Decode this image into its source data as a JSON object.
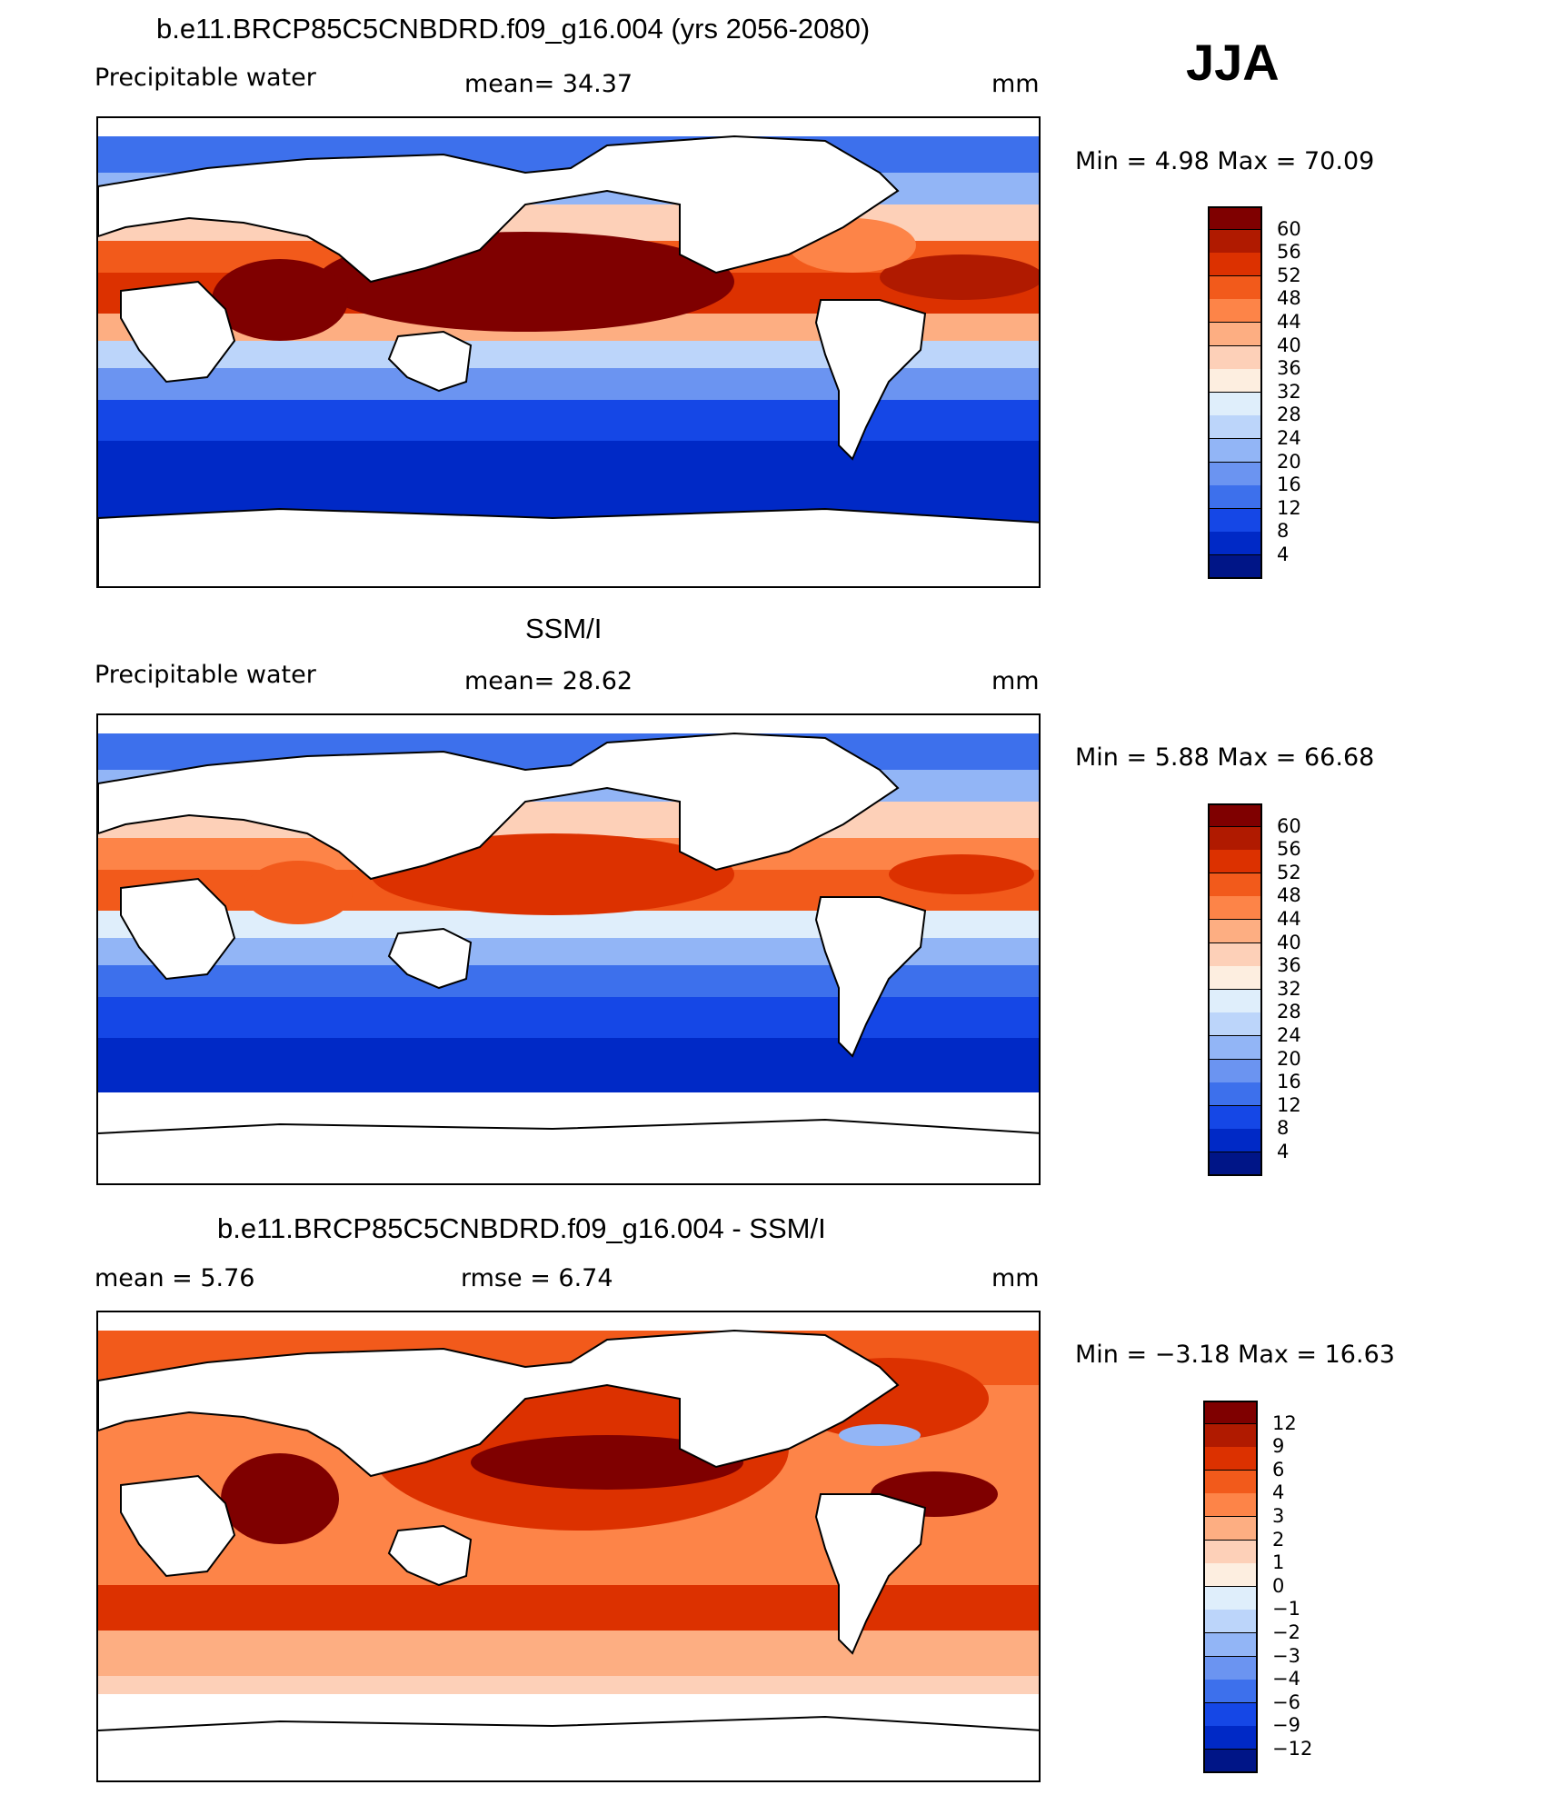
{
  "header": {
    "season": "JJA"
  },
  "panels": [
    {
      "id": "model",
      "title": "b.e11.BRCP85C5CNBDRD.f09_g16.004 (yrs 2056-2080)",
      "left_label": "Precipitable water",
      "mid_label": "mean=   34.37",
      "units": "mm",
      "minmax": "Min =    4.98 Max =   70.09",
      "colorbar": {
        "levels": [
          "60",
          "56",
          "52",
          "48",
          "44",
          "40",
          "36",
          "32",
          "28",
          "24",
          "20",
          "16",
          "12",
          "8",
          "4"
        ],
        "colors": [
          "#7f0000",
          "#b01a00",
          "#dc3100",
          "#f25a1b",
          "#fd8448",
          "#fdae82",
          "#fdd0b8",
          "#fdeee0",
          "#dfeefb",
          "#bcd5fa",
          "#92b5f6",
          "#6b94f1",
          "#3d70ec",
          "#1547e6",
          "#0029c6",
          "#001587"
        ]
      }
    },
    {
      "id": "obs",
      "title": "SSM/I",
      "left_label": "Precipitable water",
      "mid_label": "mean=   28.62",
      "units": "mm",
      "minmax": "Min =    5.88 Max =   66.68",
      "colorbar": {
        "levels": [
          "60",
          "56",
          "52",
          "48",
          "44",
          "40",
          "36",
          "32",
          "28",
          "24",
          "20",
          "16",
          "12",
          "8",
          "4"
        ],
        "colors": [
          "#7f0000",
          "#b01a00",
          "#dc3100",
          "#f25a1b",
          "#fd8448",
          "#fdae82",
          "#fdd0b8",
          "#fdeee0",
          "#dfeefb",
          "#bcd5fa",
          "#92b5f6",
          "#6b94f1",
          "#3d70ec",
          "#1547e6",
          "#0029c6",
          "#001587"
        ]
      }
    },
    {
      "id": "diff",
      "title": "b.e11.BRCP85C5CNBDRD.f09_g16.004 - SSM/I",
      "left_label": "mean =    5.76",
      "mid_label": "rmse =    6.74",
      "units": "mm",
      "minmax": "Min =  −3.18 Max =   16.63",
      "colorbar": {
        "levels": [
          "12",
          "9",
          "6",
          "4",
          "3",
          "2",
          "1",
          "0",
          "−1",
          "−2",
          "−3",
          "−4",
          "−6",
          "−9",
          "−12"
        ],
        "colors": [
          "#7f0000",
          "#b01a00",
          "#dc3100",
          "#f25a1b",
          "#fd8448",
          "#fdae82",
          "#fdd0b8",
          "#fdeee0",
          "#dfeefb",
          "#bcd5fa",
          "#92b5f6",
          "#6b94f1",
          "#3d70ec",
          "#1547e6",
          "#0029c6",
          "#001587"
        ]
      }
    }
  ]
}
